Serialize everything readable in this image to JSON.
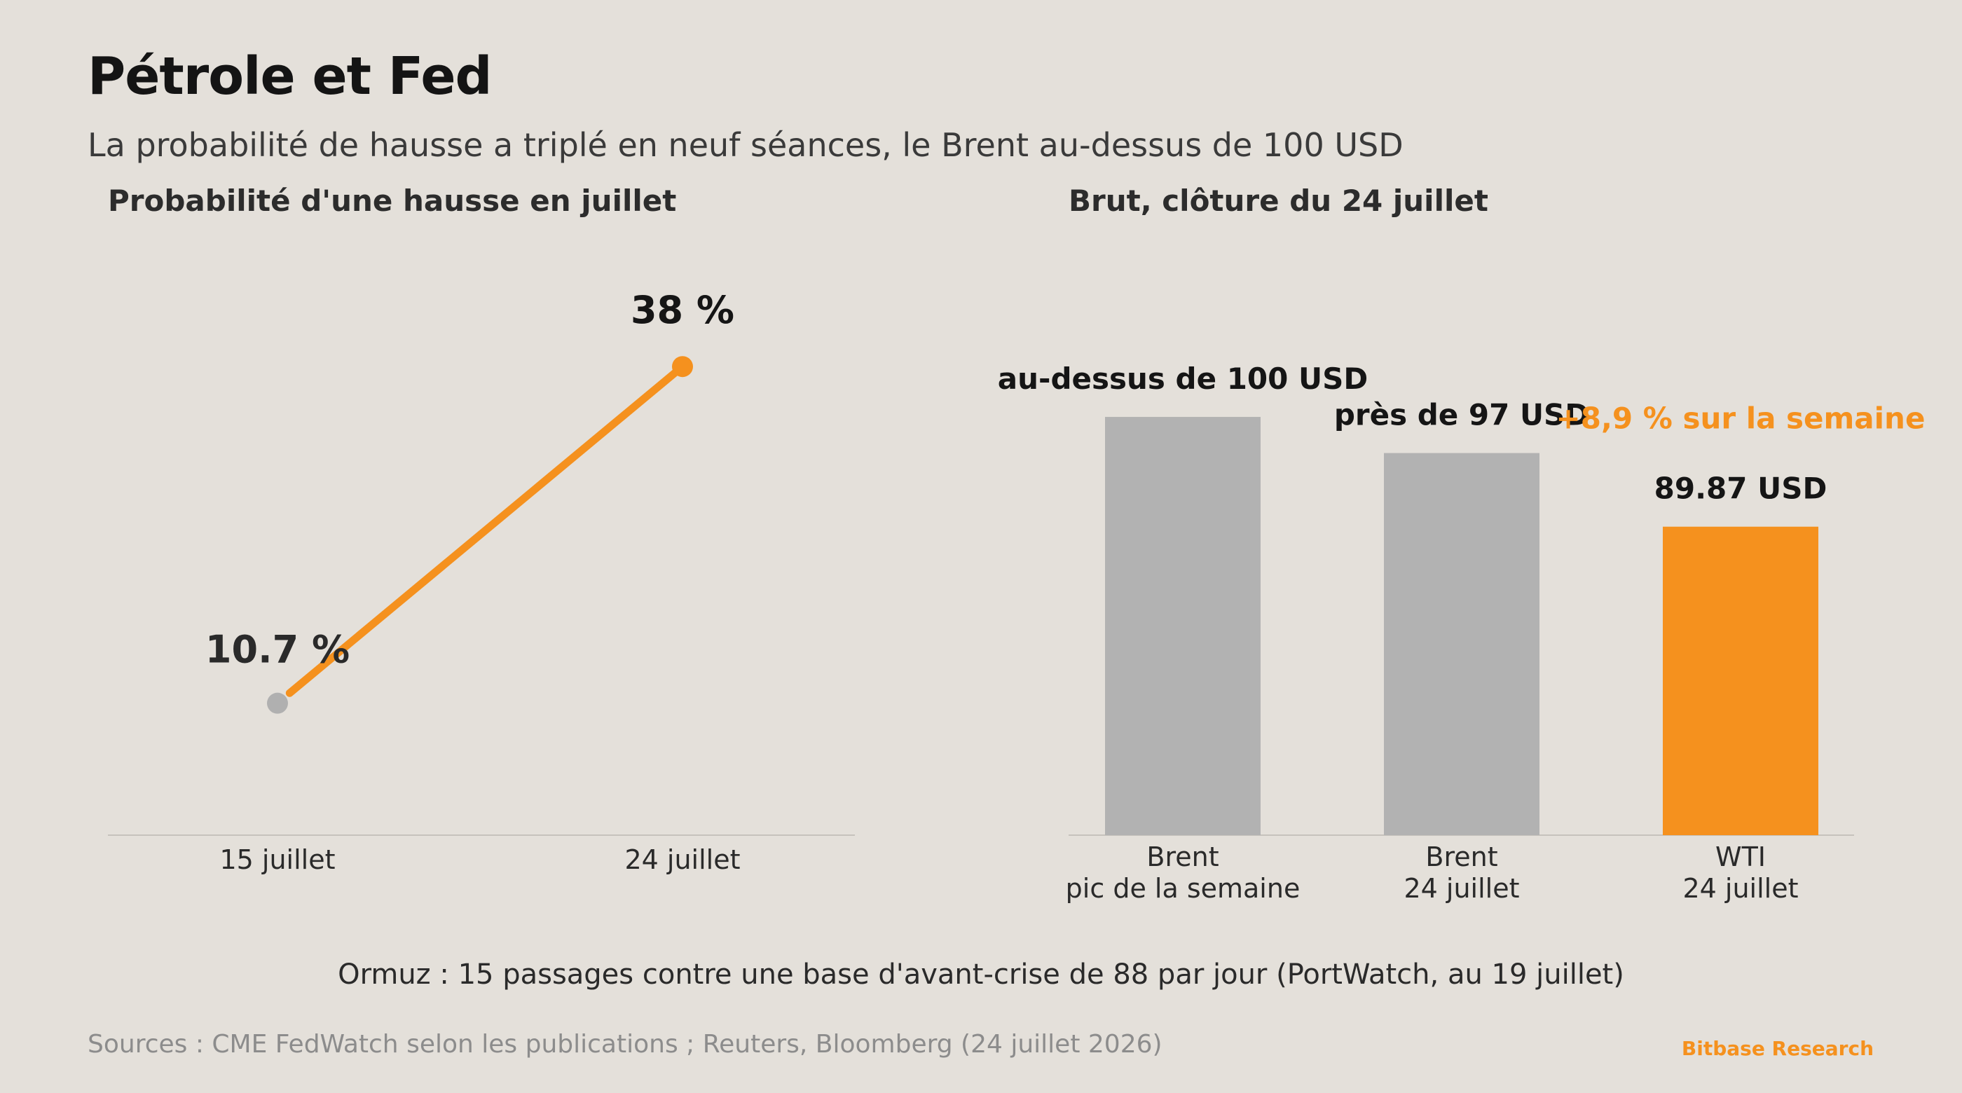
{
  "header": {
    "title": "Pétrole et Fed",
    "subtitle": "La probabilité de hausse a triplé en neuf séances, le Brent au-dessus de 100 USD"
  },
  "colors": {
    "accent": "#f5911e",
    "neutral": "#b2b2b2",
    "muted_point": "#b0b0b0",
    "background": "#e4e0da"
  },
  "chart_data": [
    {
      "type": "line",
      "title": "Probabilité d'une hausse en juillet",
      "categories": [
        "15 juillet",
        "24 juillet"
      ],
      "series": [
        {
          "values": [
            10.7,
            38
          ]
        }
      ],
      "data_labels": [
        "10.7 %",
        "38 %"
      ],
      "unit": "%",
      "ylim": [
        0,
        45
      ],
      "grid": false
    },
    {
      "type": "bar",
      "title": "Brut, clôture du 24 juillet",
      "categories": [
        [
          "Brent",
          "pic de la semaine"
        ],
        [
          "Brent",
          "24 juillet"
        ],
        [
          "WTI",
          "24 juillet"
        ]
      ],
      "values": [
        100.5,
        97,
        89.87
      ],
      "data_labels": [
        "au-dessus de 100 USD",
        "près de 97 USD",
        "89.87 USD"
      ],
      "annotation": "+8,9 % sur la semaine",
      "highlight_index": 2,
      "unit": "USD",
      "ylim": [
        60,
        110
      ],
      "grid": false
    }
  ],
  "footer": {
    "note": "Ormuz : 15 passages contre une base d'avant-crise de 88 par jour (PortWatch, au 19 juillet)",
    "sources": "Sources : CME FedWatch selon les publications ; Reuters, Bloomberg (24 juillet 2026)",
    "brand": "Bitbase Research"
  }
}
